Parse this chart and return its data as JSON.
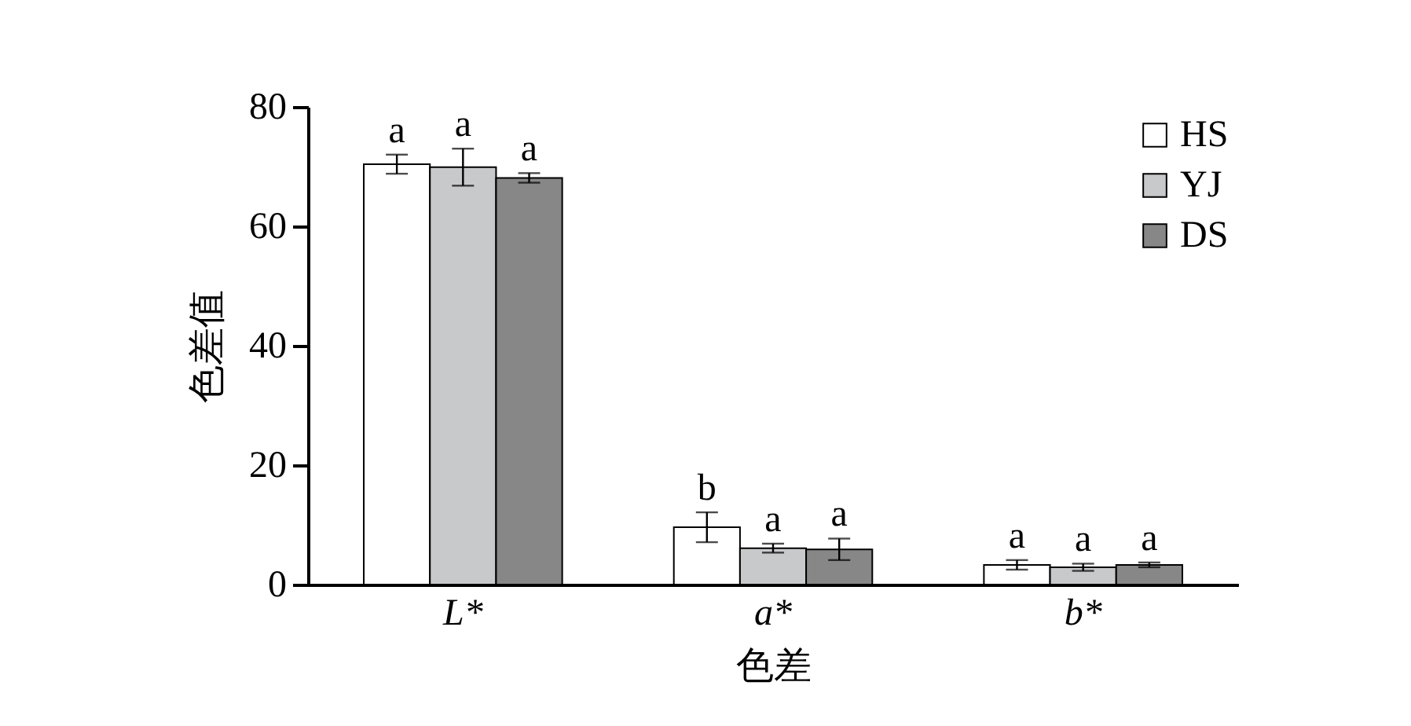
{
  "chart_data": {
    "type": "bar",
    "xlabel": "色差",
    "ylabel": "色差值",
    "categories": [
      "L*",
      "a*",
      "b*"
    ],
    "series": [
      {
        "name": "HS",
        "color": "#ffffff",
        "values": [
          70.4,
          9.6,
          3.3
        ],
        "errors": [
          1.6,
          2.5,
          0.8
        ],
        "value_labels": [
          "a",
          "b",
          "a"
        ]
      },
      {
        "name": "YJ",
        "color": "#c8c9cb",
        "values": [
          69.9,
          6.1,
          2.9
        ],
        "errors": [
          3.1,
          0.75,
          0.6
        ],
        "value_labels": [
          "a",
          "a",
          "a"
        ]
      },
      {
        "name": "DS",
        "color": "#878787",
        "values": [
          68.1,
          5.9,
          3.3
        ],
        "errors": [
          0.8,
          1.8,
          0.4
        ],
        "value_labels": [
          "a",
          "a",
          "a"
        ]
      }
    ],
    "ylim": [
      0,
      80
    ],
    "yticks": [
      0,
      20,
      40,
      60,
      80
    ],
    "grid": false,
    "legend": "top right"
  }
}
